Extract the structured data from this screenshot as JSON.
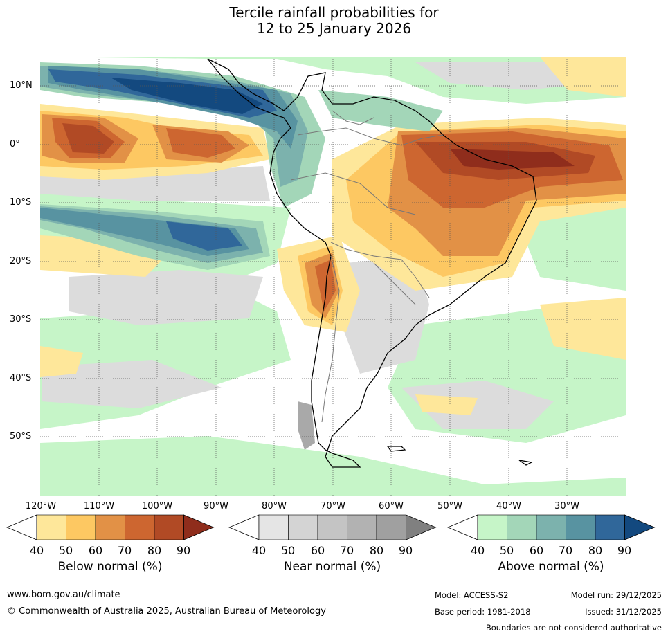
{
  "title": {
    "line1": "Tercile rainfall probabilities for",
    "line2": "12 to 25 January 2026"
  },
  "map": {
    "lat_labels": [
      "10°N",
      "0°",
      "10°S",
      "20°S",
      "30°S",
      "40°S",
      "50°S"
    ],
    "lon_labels": [
      "120°W",
      "110°W",
      "100°W",
      "90°W",
      "80°W",
      "70°W",
      "60°W",
      "50°W",
      "40°W",
      "30°W"
    ]
  },
  "colorbars": [
    {
      "title": "Below normal (%)",
      "ticks": [
        "40",
        "50",
        "60",
        "70",
        "80",
        "90"
      ],
      "colors": [
        "#ffffff",
        "#fee79a",
        "#fdc862",
        "#e29146",
        "#cd6630",
        "#b14a25",
        "#8f2d1c"
      ]
    },
    {
      "title": "Near normal (%)",
      "ticks": [
        "40",
        "50",
        "60",
        "70",
        "80",
        "90"
      ],
      "colors": [
        "#ffffff",
        "#e5e5e5",
        "#d4d4d4",
        "#c4c4c4",
        "#b2b2b2",
        "#a0a0a0",
        "#808080"
      ]
    },
    {
      "title": "Above normal (%)",
      "ticks": [
        "40",
        "50",
        "60",
        "70",
        "80",
        "90"
      ],
      "colors": [
        "#ffffff",
        "#c6f5c8",
        "#a3d6b8",
        "#7cb2ad",
        "#5893a1",
        "#30679a",
        "#13497f"
      ]
    }
  ],
  "footer": {
    "website": "www.bom.gov.au/climate",
    "copyright": "© Commonwealth of Australia 2025, Australian Bureau of Meteorology",
    "model": "Model: ACCESS-S2",
    "base_period": "Base period: 1981-2018",
    "model_run": "Model run: 29/12/2025",
    "issued": "Issued: 31/12/2025",
    "disclaimer": "Boundaries are not considered authoritative"
  }
}
